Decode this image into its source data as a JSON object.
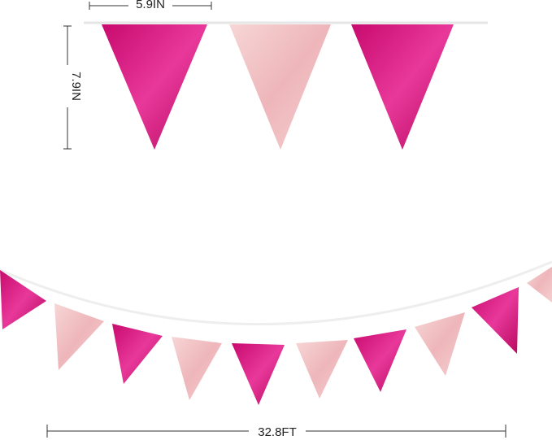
{
  "dimensions": {
    "width_label": "5.9IN",
    "height_label": "7.9IN",
    "length_label": "32.8FT"
  },
  "colors": {
    "magenta": "#d6157f",
    "pink": "#f2c4c6",
    "string": "#e8e8e8"
  },
  "top_flags": [
    "magenta",
    "pink",
    "magenta"
  ],
  "garland_flags": [
    "magenta",
    "pink",
    "magenta",
    "pink",
    "magenta",
    "pink",
    "magenta",
    "pink",
    "magenta",
    "pink"
  ]
}
